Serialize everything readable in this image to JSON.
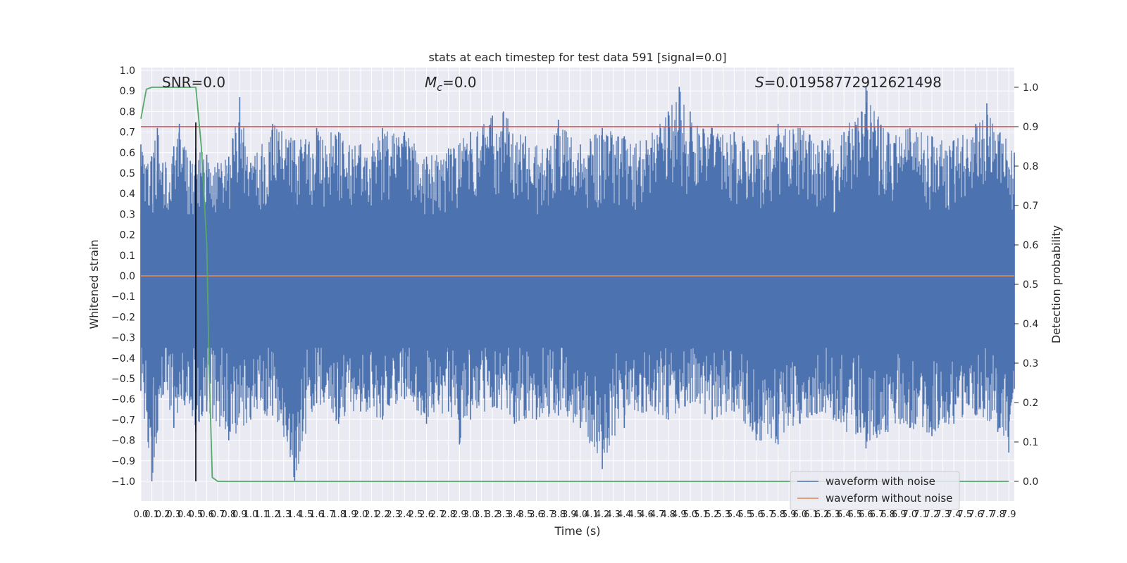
{
  "chart_data": {
    "type": "line",
    "title": "stats at each timestep for test data 591 [signal=0.0]",
    "xlabel": "Time (s)",
    "ylabel": "Whitened strain",
    "y2label": "Detection probability",
    "xlim": [
      0.0,
      7.95
    ],
    "ylim": [
      -1.0,
      1.0
    ],
    "y2lim": [
      0.0,
      1.0
    ],
    "grid": true,
    "legend_position": "lower-right",
    "x_tick_labels": [
      "0.0",
      "0.1",
      "0.2",
      "0.3",
      "0.4",
      "0.5",
      "0.6",
      "0.7",
      "0.8",
      "0.9",
      "1.0",
      "1.1",
      "1.2",
      "1.3",
      "1.4",
      "1.5",
      "1.6",
      "1.7",
      "1.8",
      "1.9",
      "2.0",
      "2.1",
      "2.2",
      "2.3",
      "2.4",
      "2.5",
      "2.6",
      "2.7",
      "2.8",
      "2.9",
      "3.0",
      "3.1",
      "3.2",
      "3.3",
      "3.4",
      "3.5",
      "3.6",
      "3.7",
      "3.8",
      "3.9",
      "4.0",
      "4.1",
      "4.2",
      "4.3",
      "4.4",
      "4.5",
      "4.6",
      "4.7",
      "4.8",
      "4.9",
      "5.0",
      "5.1",
      "5.2",
      "5.3",
      "5.4",
      "5.5",
      "5.6",
      "5.7",
      "5.8",
      "5.9",
      "6.0",
      "6.1",
      "6.2",
      "6.3",
      "6.4",
      "6.5",
      "6.6",
      "6.7",
      "6.8",
      "6.9",
      "7.0",
      "7.1",
      "7.2",
      "7.3",
      "7.4",
      "7.5",
      "7.6",
      "7.7",
      "7.8",
      "7.9"
    ],
    "y_tick_labels": [
      "1.0",
      "0.9",
      "0.8",
      "0.7",
      "0.6",
      "0.5",
      "0.4",
      "0.3",
      "0.2",
      "0.1",
      "0.0",
      "−0.1",
      "−0.2",
      "−0.3",
      "−0.4",
      "−0.5",
      "−0.6",
      "−0.7",
      "−0.8",
      "−0.9",
      "−1.0"
    ],
    "y2_tick_labels": [
      "1.0",
      "0.9",
      "0.8",
      "0.7",
      "0.6",
      "0.5",
      "0.4",
      "0.3",
      "0.2",
      "0.1",
      "0.0"
    ],
    "annotations": {
      "snr": "SNR=0.0",
      "mc": "=0.0",
      "mc_symbol": "M",
      "mc_subscript": "c",
      "s": "=0.01958772912621498",
      "s_symbol": "S"
    },
    "series": [
      {
        "name": "waveform with noise",
        "color": "#4c72b0",
        "axis": "left",
        "envelope_upper": [
          {
            "x": 0.0,
            "y": 0.64
          },
          {
            "x": 0.1,
            "y": 0.58
          },
          {
            "x": 0.15,
            "y": 0.72
          },
          {
            "x": 0.2,
            "y": 0.55
          },
          {
            "x": 0.3,
            "y": 0.63
          },
          {
            "x": 0.35,
            "y": 0.74
          },
          {
            "x": 0.45,
            "y": 0.56
          },
          {
            "x": 0.5,
            "y": 0.62
          },
          {
            "x": 0.6,
            "y": 0.59
          },
          {
            "x": 0.7,
            "y": 0.55
          },
          {
            "x": 0.8,
            "y": 0.58
          },
          {
            "x": 0.9,
            "y": 0.87
          },
          {
            "x": 1.0,
            "y": 0.55
          },
          {
            "x": 1.2,
            "y": 0.74
          },
          {
            "x": 1.4,
            "y": 0.66
          },
          {
            "x": 1.6,
            "y": 0.72
          },
          {
            "x": 1.8,
            "y": 0.7
          },
          {
            "x": 2.0,
            "y": 0.64
          },
          {
            "x": 2.2,
            "y": 0.72
          },
          {
            "x": 2.4,
            "y": 0.7
          },
          {
            "x": 2.6,
            "y": 0.58
          },
          {
            "x": 2.8,
            "y": 0.62
          },
          {
            "x": 3.0,
            "y": 0.7
          },
          {
            "x": 3.2,
            "y": 0.78
          },
          {
            "x": 3.3,
            "y": 0.8
          },
          {
            "x": 3.5,
            "y": 0.68
          },
          {
            "x": 3.7,
            "y": 0.62
          },
          {
            "x": 3.8,
            "y": 0.76
          },
          {
            "x": 4.0,
            "y": 0.64
          },
          {
            "x": 4.2,
            "y": 0.72
          },
          {
            "x": 4.4,
            "y": 0.68
          },
          {
            "x": 4.6,
            "y": 0.66
          },
          {
            "x": 4.8,
            "y": 0.8
          },
          {
            "x": 4.9,
            "y": 0.92
          },
          {
            "x": 5.0,
            "y": 0.8
          },
          {
            "x": 5.2,
            "y": 0.72
          },
          {
            "x": 5.4,
            "y": 0.7
          },
          {
            "x": 5.6,
            "y": 0.66
          },
          {
            "x": 5.8,
            "y": 0.74
          },
          {
            "x": 6.0,
            "y": 0.72
          },
          {
            "x": 6.2,
            "y": 0.66
          },
          {
            "x": 6.4,
            "y": 0.7
          },
          {
            "x": 6.6,
            "y": 0.92
          },
          {
            "x": 6.8,
            "y": 0.7
          },
          {
            "x": 7.0,
            "y": 0.72
          },
          {
            "x": 7.2,
            "y": 0.68
          },
          {
            "x": 7.4,
            "y": 0.66
          },
          {
            "x": 7.6,
            "y": 0.74
          },
          {
            "x": 7.7,
            "y": 0.84
          },
          {
            "x": 7.95,
            "y": 0.6
          }
        ],
        "envelope_lower": [
          {
            "x": 0.0,
            "y": -0.56
          },
          {
            "x": 0.1,
            "y": -1.0
          },
          {
            "x": 0.2,
            "y": -0.58
          },
          {
            "x": 0.3,
            "y": -0.74
          },
          {
            "x": 0.4,
            "y": -0.63
          },
          {
            "x": 0.5,
            "y": -0.76
          },
          {
            "x": 0.6,
            "y": -0.66
          },
          {
            "x": 0.8,
            "y": -0.8
          },
          {
            "x": 1.0,
            "y": -0.7
          },
          {
            "x": 1.2,
            "y": -0.68
          },
          {
            "x": 1.4,
            "y": -1.0
          },
          {
            "x": 1.6,
            "y": -0.62
          },
          {
            "x": 1.8,
            "y": -0.72
          },
          {
            "x": 2.0,
            "y": -0.66
          },
          {
            "x": 2.2,
            "y": -0.7
          },
          {
            "x": 2.4,
            "y": -0.6
          },
          {
            "x": 2.6,
            "y": -0.72
          },
          {
            "x": 2.8,
            "y": -0.66
          },
          {
            "x": 2.9,
            "y": -0.82
          },
          {
            "x": 3.0,
            "y": -0.7
          },
          {
            "x": 3.2,
            "y": -0.64
          },
          {
            "x": 3.4,
            "y": -0.72
          },
          {
            "x": 3.6,
            "y": -0.7
          },
          {
            "x": 3.8,
            "y": -0.68
          },
          {
            "x": 4.0,
            "y": -0.74
          },
          {
            "x": 4.2,
            "y": -0.94
          },
          {
            "x": 4.4,
            "y": -0.74
          },
          {
            "x": 4.6,
            "y": -0.66
          },
          {
            "x": 4.8,
            "y": -0.7
          },
          {
            "x": 5.0,
            "y": -0.62
          },
          {
            "x": 5.2,
            "y": -0.7
          },
          {
            "x": 5.4,
            "y": -0.66
          },
          {
            "x": 5.6,
            "y": -0.8
          },
          {
            "x": 5.8,
            "y": -0.82
          },
          {
            "x": 6.0,
            "y": -0.72
          },
          {
            "x": 6.2,
            "y": -0.66
          },
          {
            "x": 6.6,
            "y": -0.84
          },
          {
            "x": 6.8,
            "y": -0.76
          },
          {
            "x": 7.0,
            "y": -0.74
          },
          {
            "x": 7.2,
            "y": -0.78
          },
          {
            "x": 7.4,
            "y": -0.72
          },
          {
            "x": 7.6,
            "y": -0.68
          },
          {
            "x": 7.8,
            "y": -0.76
          },
          {
            "x": 7.9,
            "y": -0.86
          },
          {
            "x": 7.95,
            "y": -0.55
          }
        ]
      },
      {
        "name": "waveform without noise",
        "color": "#dd8452",
        "axis": "left",
        "points": [
          {
            "x": 0.0,
            "y": 0.0
          },
          {
            "x": 7.95,
            "y": 0.0
          }
        ]
      },
      {
        "color": "#55a868",
        "axis": "right",
        "points": [
          {
            "x": 0.0,
            "y": 0.92
          },
          {
            "x": 0.05,
            "y": 0.995
          },
          {
            "x": 0.1,
            "y": 1.0
          },
          {
            "x": 0.5,
            "y": 1.0
          },
          {
            "x": 0.55,
            "y": 0.85
          },
          {
            "x": 0.6,
            "y": 0.6
          },
          {
            "x": 0.62,
            "y": 0.3
          },
          {
            "x": 0.65,
            "y": 0.01
          },
          {
            "x": 0.7,
            "y": 0.0
          },
          {
            "x": 7.9,
            "y": 0.0
          }
        ]
      }
    ],
    "threshold_line": {
      "axis": "right",
      "y": 0.9,
      "color": "#c44e52"
    },
    "marker_line": {
      "x": 0.5,
      "y_from": -1.0,
      "y_to": 0.9,
      "color": "#000000"
    }
  }
}
